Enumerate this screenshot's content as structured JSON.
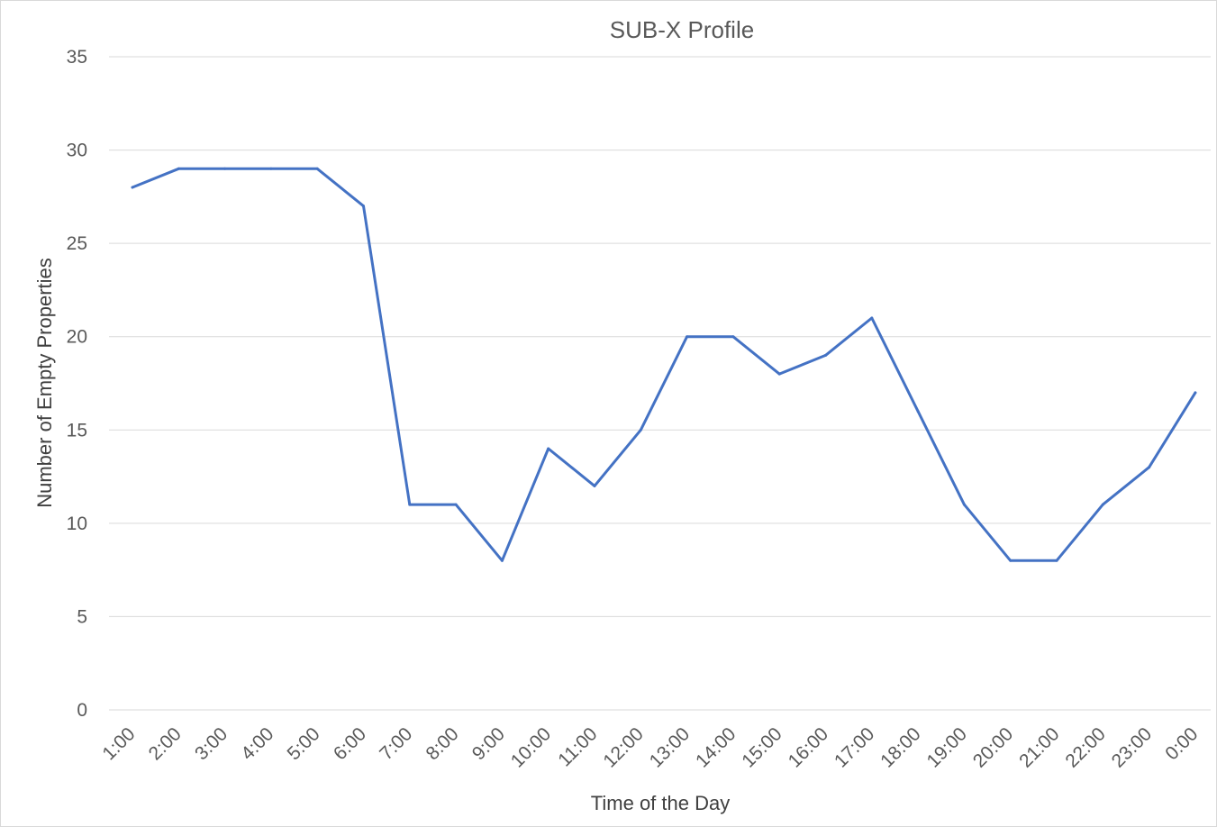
{
  "chart_data": {
    "type": "line",
    "title": "SUB-X Profile",
    "xlabel": "Time of the Day",
    "ylabel": "Number of Empty Properties",
    "ylim": [
      0,
      35
    ],
    "yticks": [
      0,
      5,
      10,
      15,
      20,
      25,
      30,
      35
    ],
    "categories": [
      "1:00",
      "2:00",
      "3:00",
      "4:00",
      "5:00",
      "6:00",
      "7:00",
      "8:00",
      "9:00",
      "10:00",
      "11:00",
      "12:00",
      "13:00",
      "14:00",
      "15:00",
      "16:00",
      "17:00",
      "18:00",
      "19:00",
      "20:00",
      "21:00",
      "22:00",
      "23:00",
      "0:00"
    ],
    "series": [
      {
        "values": [
          28,
          29,
          29,
          29,
          29,
          27,
          11,
          11,
          8,
          14,
          12,
          15,
          20,
          20,
          18,
          19,
          21,
          16,
          11,
          8,
          8,
          11,
          13,
          17
        ],
        "color": "#4472c4"
      }
    ],
    "grid": true,
    "legend": "none"
  }
}
